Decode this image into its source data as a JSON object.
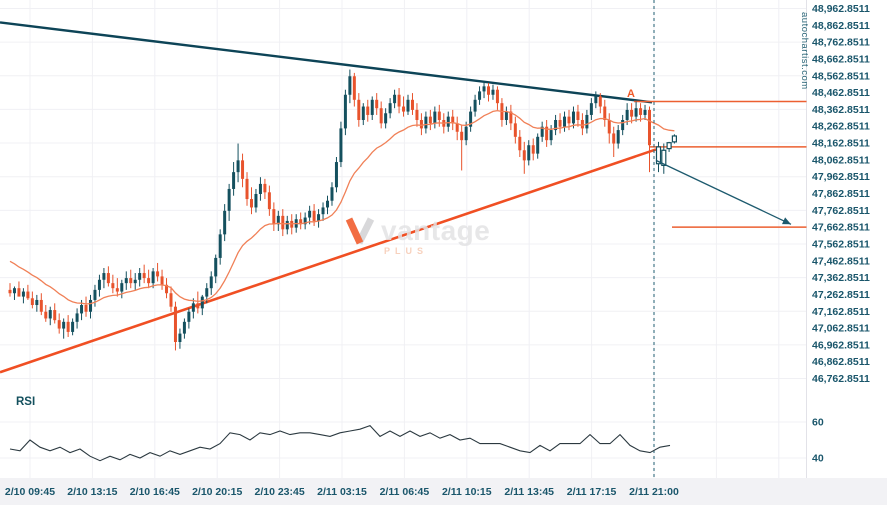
{
  "header": {
    "vertical_brand": "autochartist.com"
  },
  "watermark": {
    "name": "vantage",
    "sub": "PLUS"
  },
  "colors": {
    "bull": "#14505e",
    "bear": "#e8532c",
    "trend_upper": "#0d4457",
    "trend_lower": "#f04f23",
    "pattern_line": "#ec5f31",
    "ma": "#f08057",
    "axis_text": "#1a566b",
    "rsi_line": "#2b3940",
    "dashed": "#1f5d70",
    "grid": "#f0f0f4",
    "strip_bg": "#f2f2f5",
    "separator": "#e2e2e8",
    "arrow": "#1d5a6e",
    "label_a": "#f05a28",
    "forecast": "#14505e"
  },
  "chart_data": {
    "type": "candlestick",
    "price_axis": {
      "min": 46762.8511,
      "max": 48962.8511,
      "step": 100,
      "labels": [
        "48,962.8511",
        "48,862.8511",
        "48,762.8511",
        "48,662.8511",
        "48,562.8511",
        "48,462.8511",
        "48,362.8511",
        "48,262.8511",
        "48,162.8511",
        "48,062.8511",
        "47,962.8511",
        "47,862.8511",
        "47,762.8511",
        "47,662.8511",
        "47,562.8511",
        "47,462.8511",
        "47,362.8511",
        "47,262.8511",
        "47,162.8511",
        "47,062.8511",
        "46,962.8511",
        "46,862.8511",
        "46,762.8511"
      ]
    },
    "x_axis": {
      "labels": [
        "2/10 09:45",
        "2/10 13:15",
        "2/10 16:45",
        "2/10 20:15",
        "2/10 23:45",
        "2/11 03:15",
        "2/11 06:45",
        "2/11 10:15",
        "2/11 13:45",
        "2/11 17:15",
        "2/11 21:00"
      ],
      "bold_last": true
    },
    "pattern": {
      "label": "A",
      "resistance_price": 48410,
      "breakout_price": 48140,
      "target_price": 47662.8511,
      "arrow_from_price": 48060,
      "arrow_to_price": 47680,
      "direction": "down"
    },
    "trendlines": {
      "upper": {
        "from_price": 48880,
        "to_price": 48405
      },
      "lower": {
        "from_price": 46800,
        "to_price": 48125
      }
    },
    "ma": {
      "type": "ema",
      "period": 20
    },
    "rsi": {
      "label": "RSI",
      "axis_labels": [
        "60",
        "40"
      ],
      "gridlines": [
        60,
        40
      ],
      "values": [
        45,
        44,
        50,
        46,
        44,
        46,
        43,
        45,
        41,
        38.5,
        41,
        39,
        42,
        40,
        43,
        41,
        44,
        42,
        44,
        46,
        45,
        48,
        54,
        53,
        50,
        54,
        53,
        55,
        53,
        54,
        54,
        53,
        52,
        54,
        55,
        56,
        58,
        52,
        55,
        52,
        55,
        52,
        54,
        51,
        53,
        50,
        51,
        48,
        48,
        48,
        46,
        44,
        43,
        47,
        44,
        48,
        48,
        48,
        53,
        48,
        48,
        53,
        47,
        44,
        43,
        46,
        47
      ]
    },
    "candles": [
      [
        47290,
        47330,
        47250,
        47270
      ],
      [
        47270,
        47310,
        47230,
        47300
      ],
      [
        47300,
        47340,
        47260,
        47250
      ],
      [
        47250,
        47300,
        47210,
        47280
      ],
      [
        47280,
        47320,
        47230,
        47240
      ],
      [
        47240,
        47280,
        47180,
        47200
      ],
      [
        47200,
        47260,
        47160,
        47230
      ],
      [
        47230,
        47270,
        47140,
        47160
      ],
      [
        47160,
        47200,
        47100,
        47120
      ],
      [
        47120,
        47190,
        47080,
        47170
      ],
      [
        47170,
        47210,
        47090,
        47110
      ],
      [
        47110,
        47150,
        47030,
        47060
      ],
      [
        47060,
        47120,
        47000,
        47100
      ],
      [
        47100,
        47140,
        47010,
        47040
      ],
      [
        47040,
        47120,
        47020,
        47100
      ],
      [
        47100,
        47180,
        47060,
        47150
      ],
      [
        47150,
        47230,
        47110,
        47200
      ],
      [
        47200,
        47250,
        47130,
        47160
      ],
      [
        47160,
        47260,
        47120,
        47230
      ],
      [
        47230,
        47320,
        47190,
        47290
      ],
      [
        47290,
        47380,
        47250,
        47350
      ],
      [
        47350,
        47420,
        47300,
        47390
      ],
      [
        47390,
        47430,
        47310,
        47330
      ],
      [
        47330,
        47380,
        47270,
        47300
      ],
      [
        47300,
        47360,
        47250,
        47280
      ],
      [
        47280,
        47350,
        47240,
        47330
      ],
      [
        47330,
        47400,
        47290,
        47360
      ],
      [
        47360,
        47410,
        47300,
        47330
      ],
      [
        47330,
        47390,
        47290,
        47350
      ],
      [
        47350,
        47420,
        47310,
        47390
      ],
      [
        47390,
        47440,
        47330,
        47360
      ],
      [
        47360,
        47410,
        47300,
        47330
      ],
      [
        47330,
        47420,
        47300,
        47400
      ],
      [
        47400,
        47450,
        47340,
        47370
      ],
      [
        47370,
        47410,
        47290,
        47320
      ],
      [
        47320,
        47360,
        47240,
        47270
      ],
      [
        47270,
        47310,
        47160,
        47190
      ],
      [
        47190,
        47220,
        46930,
        46980
      ],
      [
        46980,
        47060,
        46940,
        47030
      ],
      [
        47030,
        47120,
        47000,
        47100
      ],
      [
        47100,
        47180,
        47060,
        47160
      ],
      [
        47160,
        47240,
        47120,
        47210
      ],
      [
        47210,
        47280,
        47150,
        47180
      ],
      [
        47180,
        47260,
        47140,
        47250
      ],
      [
        47250,
        47330,
        47210,
        47300
      ],
      [
        47300,
        47400,
        47260,
        47370
      ],
      [
        47370,
        47500,
        47330,
        47480
      ],
      [
        47480,
        47650,
        47440,
        47620
      ],
      [
        47620,
        47800,
        47580,
        47760
      ],
      [
        47760,
        47920,
        47700,
        47890
      ],
      [
        47890,
        48050,
        47850,
        47990
      ],
      [
        47990,
        48160,
        47930,
        48060
      ],
      [
        48060,
        48100,
        47900,
        47950
      ],
      [
        47950,
        47990,
        47790,
        47830
      ],
      [
        47830,
        47900,
        47740,
        47780
      ],
      [
        47780,
        47890,
        47750,
        47860
      ],
      [
        47860,
        47960,
        47820,
        47920
      ],
      [
        47920,
        47950,
        47830,
        47870
      ],
      [
        47870,
        47910,
        47730,
        47770
      ],
      [
        47770,
        47810,
        47640,
        47680
      ],
      [
        47680,
        47760,
        47640,
        47730
      ],
      [
        47730,
        47770,
        47610,
        47650
      ],
      [
        47650,
        47730,
        47620,
        47700
      ],
      [
        47700,
        47740,
        47620,
        47660
      ],
      [
        47660,
        47740,
        47630,
        47710
      ],
      [
        47710,
        47750,
        47650,
        47680
      ],
      [
        47680,
        47750,
        47650,
        47720
      ],
      [
        47720,
        47790,
        47680,
        47760
      ],
      [
        47760,
        47800,
        47670,
        47700
      ],
      [
        47700,
        47770,
        47660,
        47740
      ],
      [
        47740,
        47810,
        47700,
        47780
      ],
      [
        47780,
        47850,
        47740,
        47820
      ],
      [
        47820,
        47930,
        47790,
        47900
      ],
      [
        47900,
        48080,
        47870,
        48050
      ],
      [
        48050,
        48290,
        48020,
        48250
      ],
      [
        48250,
        48480,
        48210,
        48450
      ],
      [
        48450,
        48600,
        48400,
        48560
      ],
      [
        48560,
        48580,
        48380,
        48420
      ],
      [
        48420,
        48460,
        48260,
        48300
      ],
      [
        48300,
        48400,
        48270,
        48380
      ],
      [
        48380,
        48420,
        48290,
        48330
      ],
      [
        48330,
        48440,
        48300,
        48420
      ],
      [
        48420,
        48460,
        48330,
        48370
      ],
      [
        48370,
        48410,
        48250,
        48280
      ],
      [
        48280,
        48370,
        48250,
        48340
      ],
      [
        48340,
        48430,
        48310,
        48400
      ],
      [
        48400,
        48480,
        48370,
        48450
      ],
      [
        48450,
        48490,
        48340,
        48380
      ],
      [
        48380,
        48440,
        48320,
        48350
      ],
      [
        48350,
        48450,
        48330,
        48420
      ],
      [
        48420,
        48460,
        48330,
        48360
      ],
      [
        48360,
        48400,
        48260,
        48300
      ],
      [
        48300,
        48340,
        48210,
        48250
      ],
      [
        48250,
        48350,
        48220,
        48320
      ],
      [
        48320,
        48360,
        48240,
        48280
      ],
      [
        48280,
        48380,
        48250,
        48350
      ],
      [
        48350,
        48390,
        48260,
        48300
      ],
      [
        48300,
        48340,
        48220,
        48260
      ],
      [
        48260,
        48350,
        48230,
        48320
      ],
      [
        48320,
        48360,
        48240,
        48280
      ],
      [
        48280,
        48320,
        48180,
        48230
      ],
      [
        48230,
        48270,
        48000,
        48180
      ],
      [
        48180,
        48290,
        48150,
        48260
      ],
      [
        48260,
        48380,
        48230,
        48350
      ],
      [
        48350,
        48450,
        48320,
        48420
      ],
      [
        48420,
        48500,
        48390,
        48470
      ],
      [
        48470,
        48530,
        48430,
        48500
      ],
      [
        48500,
        48520,
        48410,
        48450
      ],
      [
        48450,
        48510,
        48420,
        48480
      ],
      [
        48480,
        48500,
        48360,
        48400
      ],
      [
        48400,
        48430,
        48260,
        48300
      ],
      [
        48300,
        48380,
        48270,
        48350
      ],
      [
        48350,
        48390,
        48240,
        48280
      ],
      [
        48280,
        48320,
        48160,
        48200
      ],
      [
        48200,
        48240,
        48080,
        48120
      ],
      [
        48120,
        48170,
        47980,
        48060
      ],
      [
        48060,
        48180,
        48030,
        48150
      ],
      [
        48150,
        48190,
        48060,
        48100
      ],
      [
        48100,
        48220,
        48070,
        48200
      ],
      [
        48200,
        48290,
        48170,
        48260
      ],
      [
        48260,
        48300,
        48140,
        48180
      ],
      [
        48180,
        48270,
        48150,
        48240
      ],
      [
        48240,
        48330,
        48210,
        48300
      ],
      [
        48300,
        48340,
        48220,
        48260
      ],
      [
        48260,
        48350,
        48230,
        48320
      ],
      [
        48320,
        48360,
        48240,
        48280
      ],
      [
        48280,
        48380,
        48250,
        48350
      ],
      [
        48350,
        48390,
        48260,
        48300
      ],
      [
        48300,
        48340,
        48210,
        48250
      ],
      [
        48250,
        48360,
        48220,
        48330
      ],
      [
        48330,
        48430,
        48300,
        48400
      ],
      [
        48400,
        48470,
        48370,
        48440
      ],
      [
        48440,
        48460,
        48340,
        48380
      ],
      [
        48380,
        48420,
        48260,
        48300
      ],
      [
        48300,
        48340,
        48160,
        48220
      ],
      [
        48220,
        48260,
        48080,
        48160
      ],
      [
        48160,
        48270,
        48130,
        48240
      ],
      [
        48240,
        48330,
        48210,
        48300
      ],
      [
        48300,
        48400,
        48270,
        48360
      ],
      [
        48360,
        48400,
        48280,
        48320
      ],
      [
        48320,
        48410,
        48290,
        48370
      ],
      [
        48370,
        48400,
        48290,
        48330
      ],
      [
        48330,
        48390,
        48300,
        48360
      ],
      [
        48360,
        48380,
        47990,
        48150
      ]
    ],
    "forecast_candles": [
      [
        48140,
        48170,
        47990,
        48040
      ],
      [
        48120,
        48160,
        47980,
        48030
      ],
      [
        48130,
        48170,
        48110,
        48165
      ],
      [
        48170,
        48215,
        48160,
        48205
      ]
    ]
  }
}
